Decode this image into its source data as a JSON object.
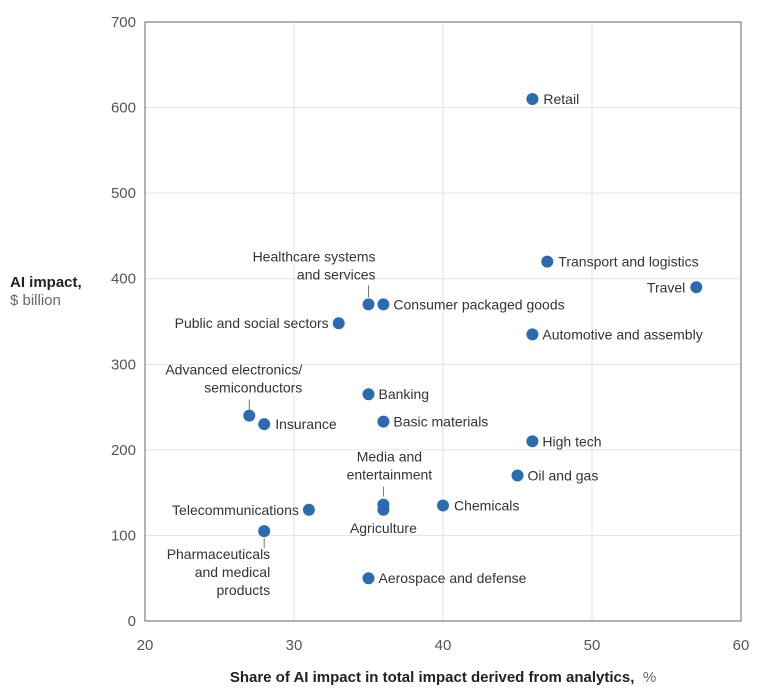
{
  "chart_data": {
    "type": "scatter",
    "xlabel": "Share of AI impact in total impact derived from analytics,",
    "xlabel_unit": "%",
    "ylabel": "AI impact,",
    "ylabel_unit": "$ billion",
    "xlim": [
      20,
      60
    ],
    "ylim": [
      0,
      700
    ],
    "xticks": [
      "20",
      "30",
      "40",
      "50",
      "60"
    ],
    "yticks": [
      "0",
      "100",
      "200",
      "300",
      "400",
      "500",
      "600",
      "700"
    ],
    "grid": true,
    "marker_color": "#2b6cb0",
    "points": [
      {
        "label": [
          "Retail"
        ],
        "x": 46,
        "y": 610
      },
      {
        "label": [
          "Transport and logistics"
        ],
        "x": 47,
        "y": 420
      },
      {
        "label": [
          "Travel"
        ],
        "x": 57,
        "y": 390
      },
      {
        "label": [
          "Healthcare systems",
          "and services"
        ],
        "x": 35,
        "y": 370
      },
      {
        "label": [
          "Consumer packaged goods"
        ],
        "x": 36,
        "y": 370
      },
      {
        "label": [
          "Public and social sectors"
        ],
        "x": 33,
        "y": 348
      },
      {
        "label": [
          "Automotive and assembly"
        ],
        "x": 46,
        "y": 335
      },
      {
        "label": [
          "Banking"
        ],
        "x": 35,
        "y": 265
      },
      {
        "label": [
          "Advanced electronics/",
          "semiconductors"
        ],
        "x": 27,
        "y": 240
      },
      {
        "label": [
          "Insurance"
        ],
        "x": 28,
        "y": 230
      },
      {
        "label": [
          "Basic materials"
        ],
        "x": 36,
        "y": 233
      },
      {
        "label": [
          "High tech"
        ],
        "x": 46,
        "y": 210
      },
      {
        "label": [
          "Oil and gas"
        ],
        "x": 45,
        "y": 170
      },
      {
        "label": [
          "Media and",
          "entertainment"
        ],
        "x": 36,
        "y": 136
      },
      {
        "label": [
          "Agriculture"
        ],
        "x": 36,
        "y": 130
      },
      {
        "label": [
          "Chemicals"
        ],
        "x": 40,
        "y": 135
      },
      {
        "label": [
          "Telecommunications"
        ],
        "x": 31,
        "y": 130
      },
      {
        "label": [
          "Pharmaceuticals",
          "and medical",
          "products"
        ],
        "x": 28,
        "y": 105
      },
      {
        "label": [
          "Aerospace and defense"
        ],
        "x": 35,
        "y": 50
      }
    ]
  }
}
